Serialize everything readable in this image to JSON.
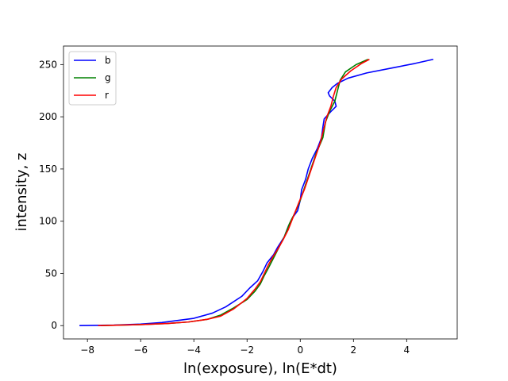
{
  "chart_data": {
    "type": "line",
    "xlabel": "ln(exposure), ln(E*dt)",
    "ylabel": "intensity, z",
    "xlim": [
      -8.9,
      5.9
    ],
    "ylim": [
      -12.75,
      267.75
    ],
    "xticks": [
      -8,
      -6,
      -4,
      -2,
      0,
      2,
      4
    ],
    "yticks": [
      0,
      50,
      100,
      150,
      200,
      250
    ],
    "grid": false,
    "legend_position": "top-left",
    "series": [
      {
        "name": "b",
        "color": "#0000ff",
        "points": [
          [
            -8.3,
            0
          ],
          [
            -7.0,
            0.5
          ],
          [
            -6.0,
            1.5
          ],
          [
            -5.2,
            3
          ],
          [
            -4.6,
            5
          ],
          [
            -4.0,
            7
          ],
          [
            -3.3,
            12
          ],
          [
            -2.8,
            18
          ],
          [
            -2.2,
            28
          ],
          [
            -1.9,
            36
          ],
          [
            -1.6,
            43
          ],
          [
            -1.4,
            52
          ],
          [
            -1.25,
            60
          ],
          [
            -1.0,
            68
          ],
          [
            -0.85,
            75
          ],
          [
            -0.6,
            85
          ],
          [
            -0.45,
            95
          ],
          [
            -0.3,
            103
          ],
          [
            -0.1,
            110
          ],
          [
            0.0,
            120
          ],
          [
            0.05,
            130
          ],
          [
            0.2,
            140
          ],
          [
            0.3,
            150
          ],
          [
            0.45,
            160
          ],
          [
            0.65,
            170
          ],
          [
            0.8,
            180
          ],
          [
            0.85,
            190
          ],
          [
            0.9,
            198
          ],
          [
            1.15,
            205
          ],
          [
            1.35,
            210
          ],
          [
            1.3,
            215
          ],
          [
            1.1,
            220
          ],
          [
            1.05,
            223
          ],
          [
            1.2,
            228
          ],
          [
            1.4,
            232
          ],
          [
            1.8,
            237
          ],
          [
            2.5,
            242
          ],
          [
            3.5,
            247
          ],
          [
            4.3,
            251
          ],
          [
            5.0,
            255
          ]
        ]
      },
      {
        "name": "g",
        "color": "#008000",
        "points": [
          [
            -7.5,
            0
          ],
          [
            -6.0,
            1
          ],
          [
            -5.0,
            2
          ],
          [
            -4.2,
            3.5
          ],
          [
            -3.5,
            6
          ],
          [
            -3.0,
            10
          ],
          [
            -2.5,
            17
          ],
          [
            -2.0,
            25
          ],
          [
            -1.7,
            33
          ],
          [
            -1.5,
            40
          ],
          [
            -1.35,
            48
          ],
          [
            -1.2,
            55
          ],
          [
            -1.0,
            65
          ],
          [
            -0.8,
            75
          ],
          [
            -0.6,
            85
          ],
          [
            -0.4,
            98
          ],
          [
            -0.2,
            108
          ],
          [
            0.0,
            120
          ],
          [
            0.2,
            135
          ],
          [
            0.4,
            150
          ],
          [
            0.6,
            165
          ],
          [
            0.85,
            180
          ],
          [
            0.95,
            195
          ],
          [
            1.1,
            205
          ],
          [
            1.3,
            215
          ],
          [
            1.4,
            225
          ],
          [
            1.5,
            235
          ],
          [
            1.7,
            243
          ],
          [
            2.1,
            250
          ],
          [
            2.55,
            255
          ]
        ]
      },
      {
        "name": "r",
        "color": "#ff0000",
        "points": [
          [
            -7.6,
            0
          ],
          [
            -6.0,
            1
          ],
          [
            -5.0,
            2
          ],
          [
            -4.2,
            3.5
          ],
          [
            -3.5,
            6
          ],
          [
            -3.0,
            9
          ],
          [
            -2.5,
            16
          ],
          [
            -2.0,
            26
          ],
          [
            -1.7,
            35
          ],
          [
            -1.5,
            42
          ],
          [
            -1.35,
            50
          ],
          [
            -1.2,
            58
          ],
          [
            -1.05,
            65
          ],
          [
            -0.85,
            73
          ],
          [
            -0.65,
            82
          ],
          [
            -0.45,
            92
          ],
          [
            -0.25,
            105
          ],
          [
            -0.05,
            118
          ],
          [
            0.15,
            130
          ],
          [
            0.35,
            145
          ],
          [
            0.55,
            160
          ],
          [
            0.75,
            175
          ],
          [
            0.9,
            190
          ],
          [
            1.0,
            200
          ],
          [
            1.15,
            210
          ],
          [
            1.25,
            220
          ],
          [
            1.35,
            228
          ],
          [
            1.55,
            236
          ],
          [
            1.9,
            244
          ],
          [
            2.3,
            251
          ],
          [
            2.6,
            255
          ]
        ]
      }
    ]
  }
}
